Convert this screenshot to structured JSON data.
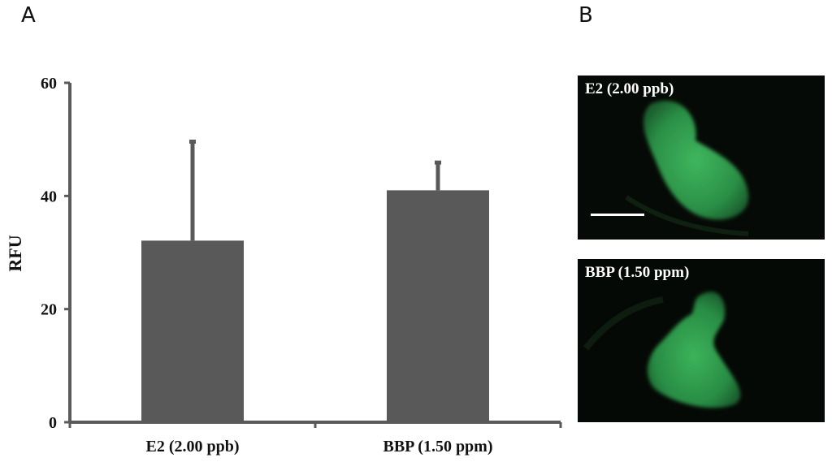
{
  "panels": {
    "a": "A",
    "b": "B"
  },
  "chart_data": {
    "type": "bar",
    "categories": [
      "E2 (2.00 ppb)",
      "BBP (1.50 ppm)"
    ],
    "values": [
      32.1,
      41.0
    ],
    "errors": [
      17.5,
      4.9
    ],
    "ylabel": "RFU",
    "xlabel": "",
    "ylim": [
      0,
      60
    ],
    "yticks": [
      0,
      20,
      40,
      60
    ],
    "grid": false,
    "bar_color": "#595959"
  },
  "images": [
    {
      "caption": "E2 (2.00 ppb)",
      "scale_bar": true
    },
    {
      "caption": "BBP (1.50 ppm)",
      "scale_bar": false
    }
  ],
  "colors": {
    "fluorescence": "#2a9a4a",
    "background": "#050805"
  }
}
